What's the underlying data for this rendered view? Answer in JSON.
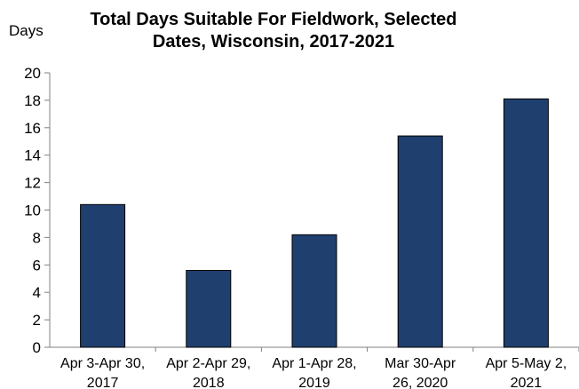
{
  "chart_data": {
    "type": "bar",
    "title": "Total Days Suitable For Fieldwork, Selected Dates, Wisconsin, 2017-2021",
    "ylabel": "Days",
    "xlabel": "",
    "categories": [
      "Apr 3-Apr 30, 2017",
      "Apr 2-Apr 29, 2018",
      "Apr 1-Apr 28, 2019",
      "Mar 30-Apr 26, 2020",
      "Apr 5-May 2, 2021"
    ],
    "values": [
      10.4,
      5.6,
      8.2,
      15.4,
      18.1
    ],
    "ylim": [
      0,
      20
    ],
    "yticks": [
      0,
      2,
      4,
      6,
      8,
      10,
      12,
      14,
      16,
      18,
      20
    ],
    "grid": false,
    "bar_color": "#1f3f6e"
  }
}
